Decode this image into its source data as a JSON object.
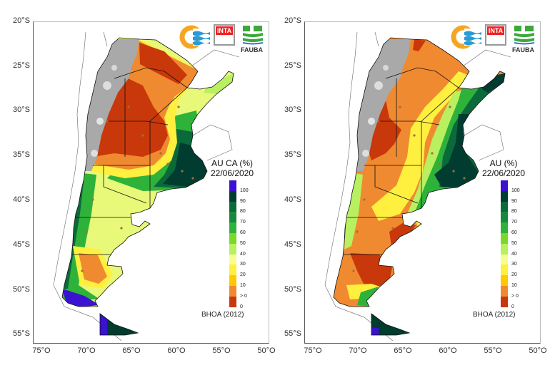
{
  "panels": [
    {
      "title": "AU CA (%)",
      "date": "22/06/2020",
      "source": "BHOA (2012)"
    },
    {
      "title": "AU (%)",
      "date": "22/06/2020",
      "source": "BHOA (2012)"
    }
  ],
  "axes": {
    "lat_labels": [
      "20°S",
      "25°S",
      "30°S",
      "35°S",
      "40°S",
      "45°S",
      "50°S",
      "55°S"
    ],
    "lon_labels": [
      "75°O",
      "70°O",
      "65°O",
      "60°O",
      "55°O",
      "50°O"
    ]
  },
  "legend": {
    "ticks": [
      "100",
      "90",
      "80",
      "70",
      "60",
      "50",
      "40",
      "30",
      "20",
      "10",
      "> 0",
      "0"
    ],
    "colors": [
      "#3a12d0",
      "#003c30",
      "#0b6a3a",
      "#168a3c",
      "#2fb23a",
      "#7ad828",
      "#b8f060",
      "#f4ff90",
      "#fff040",
      "#ffc800",
      "#f08a30",
      "#c8380a"
    ]
  },
  "logos": {
    "inta": "INTA",
    "fauba": "FAUBA"
  }
}
